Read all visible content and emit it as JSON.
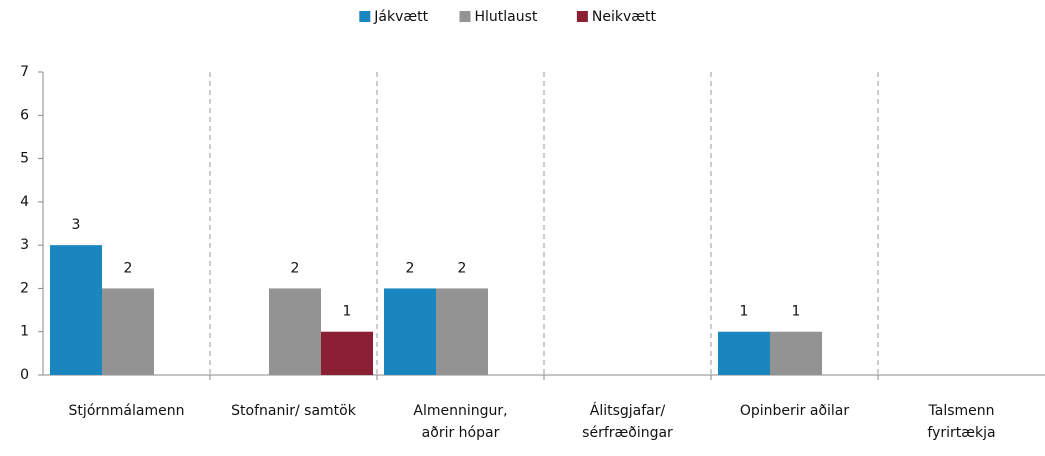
{
  "chart_data": {
    "type": "bar",
    "categories": [
      [
        "Stjórnmálamenn"
      ],
      [
        "Stofnanir/ samtök"
      ],
      [
        "Almenningur,",
        "aðrir hópar"
      ],
      [
        "Álitsgjafar/",
        "sérfræðingar"
      ],
      [
        "Opinberir aðilar"
      ],
      [
        "Talsmenn",
        "fyrirtækja"
      ]
    ],
    "series": [
      {
        "name": "Jákvætt",
        "color": "#1a86c0",
        "values": [
          3,
          null,
          2,
          null,
          1,
          null
        ]
      },
      {
        "name": "Hlutlaust",
        "color": "#939393",
        "values": [
          2,
          2,
          2,
          null,
          1,
          null
        ]
      },
      {
        "name": "Neikvætt",
        "color": "#8b2034",
        "values": [
          null,
          1,
          null,
          null,
          null,
          null
        ]
      }
    ],
    "ylim": [
      0,
      7
    ],
    "yticks": [
      0,
      1,
      2,
      3,
      4,
      5,
      6,
      7
    ],
    "legend": "top"
  }
}
